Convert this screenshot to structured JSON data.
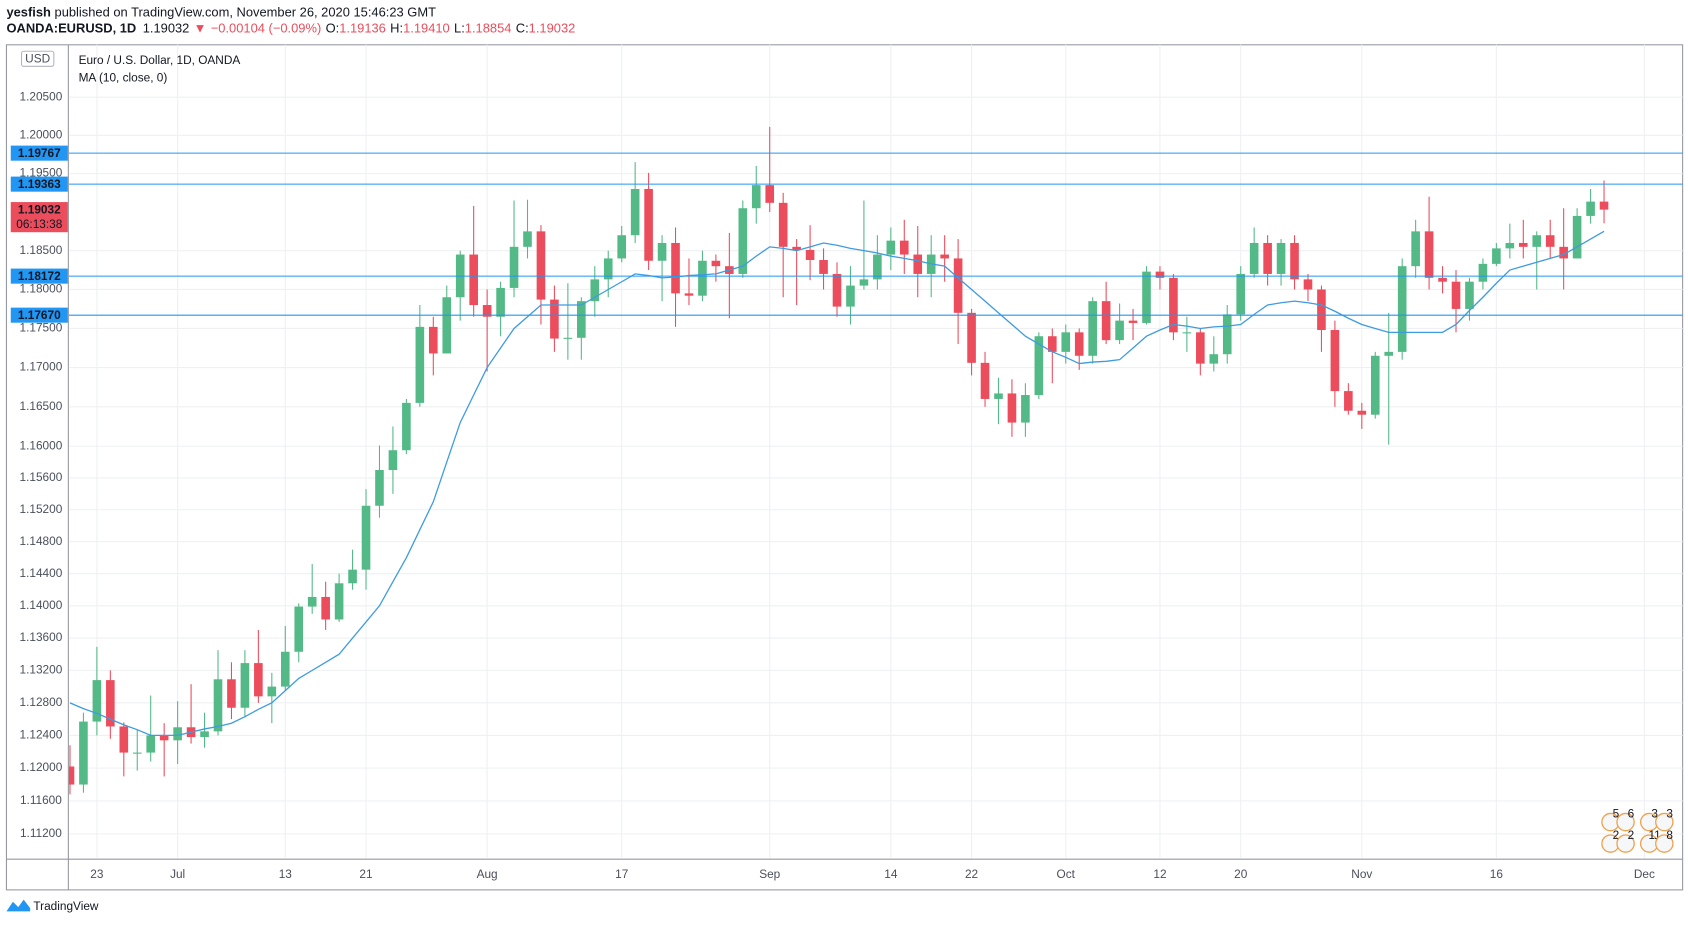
{
  "header": {
    "author": "yesfish",
    "published": " published on TradingView.com, November 26, 2020 15:46:23 GMT",
    "symbol": "OANDA:EURUSD, 1D",
    "price": "1.19032",
    "arrow": "▼",
    "change": "−0.00104 (−0.09%)",
    "ohlc": [
      {
        "key": "O:",
        "value": "1.19136"
      },
      {
        "key": "H:",
        "value": "1.19410"
      },
      {
        "key": "L:",
        "value": "1.18854"
      },
      {
        "key": "C:",
        "value": "1.19032"
      }
    ]
  },
  "footer": {
    "brand": "TradingView"
  },
  "chart_data": {
    "type": "candlestick",
    "title": "Euro / U.S. Dollar, 1D, OANDA",
    "currency": "USD",
    "log": true,
    "grid": true,
    "up_color": "#53b987",
    "down_color": "#eb4d5c",
    "categories": [
      null,
      null,
      "23",
      null,
      null,
      null,
      null,
      null,
      "Jul",
      null,
      null,
      null,
      null,
      null,
      null,
      null,
      "13",
      null,
      null,
      null,
      null,
      null,
      "21",
      null,
      null,
      null,
      null,
      null,
      null,
      null,
      null,
      "Aug",
      null,
      null,
      null,
      null,
      null,
      null,
      null,
      null,
      null,
      "17",
      null,
      null,
      null,
      null,
      null,
      null,
      null,
      null,
      null,
      null,
      "Sep",
      null,
      null,
      null,
      null,
      null,
      null,
      null,
      null,
      "14",
      null,
      null,
      null,
      null,
      null,
      "22",
      null,
      null,
      null,
      null,
      null,
      null,
      "Oct",
      null,
      null,
      null,
      null,
      null,
      null,
      "12",
      null,
      null,
      null,
      null,
      null,
      "20",
      null,
      null,
      null,
      null,
      null,
      null,
      null,
      null,
      "Nov",
      null,
      null,
      null,
      null,
      null,
      null,
      null,
      null,
      null,
      "16",
      null,
      null,
      null,
      null,
      null,
      null,
      null,
      null,
      null,
      null,
      "Dec"
    ],
    "open": [
      1.1202,
      1.118,
      1.1257,
      1.1308,
      1.1251,
      1.1219,
      1.1219,
      1.124,
      1.1234,
      1.125,
      1.1238,
      1.1245,
      1.1309,
      1.1274,
      1.1329,
      1.1288,
      1.13,
      1.1343,
      1.1399,
      1.1411,
      1.1383,
      1.1428,
      1.1445,
      1.1525,
      1.157,
      1.1595,
      1.1655,
      1.1752,
      1.1718,
      1.179,
      1.1845,
      1.178,
      1.1765,
      1.1802,
      1.1855,
      1.1875,
      1.1787,
      1.1737,
      1.1738,
      1.1785,
      1.1813,
      1.184,
      1.187,
      1.193,
      1.1837,
      1.186,
      1.1795,
      1.1792,
      1.1837,
      1.183,
      1.182,
      1.1905,
      1.1935,
      1.1912,
      1.1855,
      1.1851,
      1.1838,
      1.182,
      1.1778,
      1.1805,
      1.1813,
      1.1845,
      1.1863,
      1.1845,
      1.182,
      1.1845,
      1.184,
      1.177,
      1.1706,
      1.166,
      1.1667,
      1.163,
      1.1665,
      1.174,
      1.172,
      1.1745,
      1.1715,
      1.1785,
      1.1735,
      1.176,
      1.1757,
      1.1823,
      1.1815,
      1.1745,
      1.1745,
      1.1705,
      1.1717,
      1.1768,
      1.182,
      1.186,
      1.182,
      1.186,
      1.1813,
      1.18,
      1.1748,
      1.167,
      1.1645,
      1.164,
      1.1715,
      1.172,
      1.183,
      1.1875,
      1.1815,
      1.181,
      1.1775,
      1.181,
      1.1833,
      1.1853,
      1.186,
      1.1855,
      1.187,
      1.1855,
      1.184,
      1.1895,
      1.19136,
      null,
      null,
      null
    ],
    "high": [
      1.1228,
      1.1268,
      1.1349,
      1.132,
      1.1256,
      1.1247,
      1.1289,
      1.1255,
      1.1282,
      1.1303,
      1.1268,
      1.1345,
      1.133,
      1.1345,
      1.137,
      1.1317,
      1.1375,
      1.1403,
      1.1452,
      1.143,
      1.144,
      1.147,
      1.1546,
      1.1601,
      1.1625,
      1.166,
      1.178,
      1.1765,
      1.1805,
      1.185,
      1.1908,
      1.18,
      1.181,
      1.1915,
      1.1916,
      1.1883,
      1.1805,
      1.1808,
      1.179,
      1.183,
      1.185,
      1.1882,
      1.1965,
      1.1951,
      1.187,
      1.188,
      1.184,
      1.185,
      1.1845,
      1.1873,
      1.1915,
      1.196,
      1.2011,
      1.1925,
      1.1865,
      1.1883,
      1.1853,
      1.1835,
      1.183,
      1.1915,
      1.187,
      1.188,
      1.189,
      1.1882,
      1.187,
      1.187,
      1.1865,
      1.1775,
      1.172,
      1.1687,
      1.1685,
      1.168,
      1.1745,
      1.175,
      1.1755,
      1.175,
      1.179,
      1.181,
      1.1782,
      1.1775,
      1.183,
      1.183,
      1.182,
      1.1765,
      1.175,
      1.174,
      1.178,
      1.183,
      1.188,
      1.187,
      1.1865,
      1.187,
      1.182,
      1.1805,
      1.176,
      1.168,
      1.1655,
      1.172,
      1.177,
      1.184,
      1.189,
      1.192,
      1.183,
      1.1825,
      1.1815,
      1.184,
      1.186,
      1.1885,
      1.189,
      1.1875,
      1.189,
      1.1905,
      1.1905,
      1.193,
      1.1941,
      null,
      null,
      null
    ],
    "low": [
      1.1168,
      1.117,
      1.124,
      1.1236,
      1.119,
      1.1197,
      1.1208,
      1.119,
      1.1205,
      1.123,
      1.1225,
      1.124,
      1.126,
      1.1262,
      1.128,
      1.1255,
      1.1295,
      1.133,
      1.139,
      1.137,
      1.138,
      1.142,
      1.142,
      1.151,
      1.154,
      1.159,
      1.165,
      1.169,
      1.1718,
      1.176,
      1.1765,
      1.1695,
      1.174,
      1.179,
      1.184,
      1.1755,
      1.172,
      1.171,
      1.171,
      1.1765,
      1.179,
      1.1835,
      1.186,
      1.1825,
      1.1785,
      1.1752,
      1.178,
      1.1785,
      1.181,
      1.1763,
      1.1815,
      1.1885,
      1.19,
      1.179,
      1.178,
      1.1812,
      1.18,
      1.1765,
      1.1755,
      1.18,
      1.18,
      1.1825,
      1.182,
      1.179,
      1.179,
      1.181,
      1.173,
      1.169,
      1.165,
      1.1628,
      1.1612,
      1.1612,
      1.166,
      1.168,
      1.1705,
      1.1697,
      1.1705,
      1.173,
      1.173,
      1.1735,
      1.1755,
      1.18,
      1.1735,
      1.172,
      1.169,
      1.1695,
      1.1705,
      1.176,
      1.1815,
      1.1805,
      1.1805,
      1.18,
      1.1785,
      1.172,
      1.165,
      1.164,
      1.1622,
      1.1635,
      1.1602,
      1.171,
      1.1815,
      1.18,
      1.1795,
      1.1745,
      1.176,
      1.18,
      1.183,
      1.184,
      1.184,
      1.18,
      1.184,
      1.18,
      1.184,
      1.1885,
      1.18854,
      null,
      null,
      null
    ],
    "close": [
      1.118,
      1.1257,
      1.1308,
      1.1251,
      1.1219,
      1.1219,
      1.124,
      1.1234,
      1.125,
      1.1238,
      1.1245,
      1.1309,
      1.1274,
      1.1329,
      1.1288,
      1.13,
      1.1343,
      1.1399,
      1.1411,
      1.1383,
      1.1428,
      1.1445,
      1.1525,
      1.157,
      1.1595,
      1.1655,
      1.1752,
      1.1718,
      1.179,
      1.1845,
      1.178,
      1.1765,
      1.1802,
      1.1855,
      1.1875,
      1.1787,
      1.1737,
      1.1738,
      1.1785,
      1.1813,
      1.184,
      1.187,
      1.193,
      1.1837,
      1.186,
      1.1795,
      1.1792,
      1.1837,
      1.183,
      1.182,
      1.1905,
      1.1935,
      1.1912,
      1.1855,
      1.1851,
      1.1838,
      1.182,
      1.1778,
      1.1805,
      1.1813,
      1.1845,
      1.1863,
      1.1845,
      1.182,
      1.1845,
      1.184,
      1.177,
      1.1706,
      1.166,
      1.1667,
      1.163,
      1.1665,
      1.174,
      1.172,
      1.1745,
      1.1715,
      1.1785,
      1.1735,
      1.176,
      1.1757,
      1.1823,
      1.1815,
      1.1745,
      1.1745,
      1.1705,
      1.1717,
      1.1768,
      1.182,
      1.186,
      1.182,
      1.186,
      1.1813,
      1.18,
      1.1748,
      1.167,
      1.1645,
      1.164,
      1.1715,
      1.172,
      1.183,
      1.1875,
      1.1815,
      1.181,
      1.1775,
      1.181,
      1.1833,
      1.1853,
      1.186,
      1.1855,
      1.187,
      1.1855,
      1.184,
      1.1895,
      1.19136,
      1.19032,
      null,
      null,
      null
    ],
    "ma": {
      "name": "MA (10, close, 0)",
      "color": "#3d9be0",
      "values": [
        1.128,
        1.1273,
        1.1267,
        1.126,
        1.1253,
        1.1247,
        1.124,
        1.124,
        1.124,
        1.1244,
        1.1248,
        1.1251,
        1.1255,
        1.1263,
        1.1272,
        1.128,
        1.1295,
        1.131,
        1.132,
        1.133,
        1.134,
        1.136,
        1.138,
        1.14,
        1.143,
        1.146,
        1.1495,
        1.153,
        1.158,
        1.163,
        1.1665,
        1.17,
        1.1725,
        1.175,
        1.1765,
        1.178,
        1.178,
        1.178,
        1.178,
        1.179,
        1.18,
        1.181,
        1.182,
        1.1818,
        1.1815,
        1.1816,
        1.1818,
        1.1819,
        1.182,
        1.1825,
        1.183,
        1.1843,
        1.1855,
        1.1853,
        1.185,
        1.1855,
        1.186,
        1.1857,
        1.1853,
        1.185,
        1.1847,
        1.1843,
        1.184,
        1.1837,
        1.1833,
        1.183,
        1.1815,
        1.18,
        1.1785,
        1.177,
        1.1755,
        1.174,
        1.173,
        1.172,
        1.1713,
        1.1705,
        1.1707,
        1.1708,
        1.171,
        1.1725,
        1.174,
        1.1748,
        1.1755,
        1.1753,
        1.175,
        1.1752,
        1.1753,
        1.1755,
        1.1768,
        1.178,
        1.1783,
        1.1785,
        1.1783,
        1.178,
        1.1772,
        1.1763,
        1.1755,
        1.175,
        1.1745,
        1.1745,
        1.1745,
        1.1745,
        1.1745,
        1.1755,
        1.1773,
        1.179,
        1.1808,
        1.1825,
        1.183,
        1.1835,
        1.184,
        1.1845,
        1.1855,
        1.1865,
        1.1875,
        null,
        null,
        null
      ]
    },
    "ylim": [
      1.109,
      1.2119
    ],
    "yticks": [
      {
        "value": 1.205,
        "label": "1.20500"
      },
      {
        "value": 1.2,
        "label": "1.20000"
      },
      {
        "value": 1.195,
        "label": "1.19500"
      },
      {
        "value": 1.185,
        "label": "1.18500"
      },
      {
        "value": 1.18,
        "label": "1.18000"
      },
      {
        "value": 1.175,
        "label": "1.17500"
      },
      {
        "value": 1.17,
        "label": "1.17000"
      },
      {
        "value": 1.165,
        "label": "1.16500"
      },
      {
        "value": 1.16,
        "label": "1.16000"
      },
      {
        "value": 1.156,
        "label": "1.15600"
      },
      {
        "value": 1.152,
        "label": "1.15200"
      },
      {
        "value": 1.148,
        "label": "1.14800"
      },
      {
        "value": 1.144,
        "label": "1.14400"
      },
      {
        "value": 1.14,
        "label": "1.14000"
      },
      {
        "value": 1.136,
        "label": "1.13600"
      },
      {
        "value": 1.132,
        "label": "1.13200"
      },
      {
        "value": 1.128,
        "label": "1.12800"
      },
      {
        "value": 1.124,
        "label": "1.12400"
      },
      {
        "value": 1.12,
        "label": "1.12000"
      },
      {
        "value": 1.116,
        "label": "1.11600"
      },
      {
        "value": 1.112,
        "label": "1.11200"
      }
    ],
    "levels": [
      {
        "value": 1.19767,
        "label": "1.19767"
      },
      {
        "value": 1.19363,
        "label": "1.19363"
      },
      {
        "value": 1.18172,
        "label": "1.18172"
      },
      {
        "value": 1.1767,
        "label": "1.17670"
      }
    ],
    "level_color": "#2196f3",
    "last_price": {
      "value": 1.19032,
      "label": "1.19032"
    },
    "countdown": "06:13:38",
    "events": [
      "5",
      "6",
      "3",
      "3",
      "2",
      "2",
      "11",
      "8"
    ]
  }
}
